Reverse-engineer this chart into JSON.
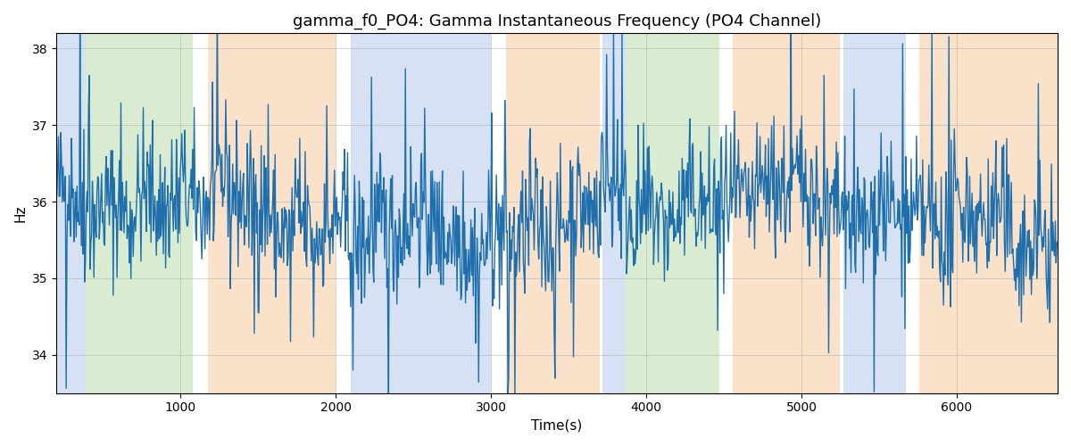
{
  "title": "gamma_f0_PO4: Gamma Instantaneous Frequency (PO4 Channel)",
  "xlabel": "Time(s)",
  "ylabel": "Hz",
  "xlim": [
    200,
    6650
  ],
  "ylim": [
    33.5,
    38.2
  ],
  "yticks": [
    34,
    35,
    36,
    37,
    38
  ],
  "line_color": "#1f6fad",
  "line_width": 1.0,
  "background_color": "#ffffff",
  "grid_color": "#aaaaaa",
  "grid_alpha": 0.5,
  "seed": 42,
  "n_points": 1300,
  "t_start": 200,
  "t_end": 6650,
  "base_freq": 35.8,
  "noise_std": 0.45,
  "colored_spans": [
    {
      "xmin": 200,
      "xmax": 390,
      "color": "#aec6e8",
      "alpha": 0.5
    },
    {
      "xmin": 390,
      "xmax": 1080,
      "color": "#b5d9a4",
      "alpha": 0.5
    },
    {
      "xmin": 1180,
      "xmax": 2000,
      "color": "#f5c9a0",
      "alpha": 0.55
    },
    {
      "xmin": 2100,
      "xmax": 3000,
      "color": "#aec6e8",
      "alpha": 0.5
    },
    {
      "xmin": 3100,
      "xmax": 3700,
      "color": "#f5c9a0",
      "alpha": 0.55
    },
    {
      "xmin": 3720,
      "xmax": 3870,
      "color": "#aec6e8",
      "alpha": 0.5
    },
    {
      "xmin": 3870,
      "xmax": 4470,
      "color": "#b5d9a4",
      "alpha": 0.5
    },
    {
      "xmin": 4560,
      "xmax": 5250,
      "color": "#f5c9a0",
      "alpha": 0.55
    },
    {
      "xmin": 5270,
      "xmax": 5670,
      "color": "#aec6e8",
      "alpha": 0.5
    },
    {
      "xmin": 5760,
      "xmax": 6650,
      "color": "#f5c9a0",
      "alpha": 0.55
    }
  ],
  "figsize": [
    12.0,
    5.0
  ],
  "dpi": 100,
  "title_fontsize": 13
}
